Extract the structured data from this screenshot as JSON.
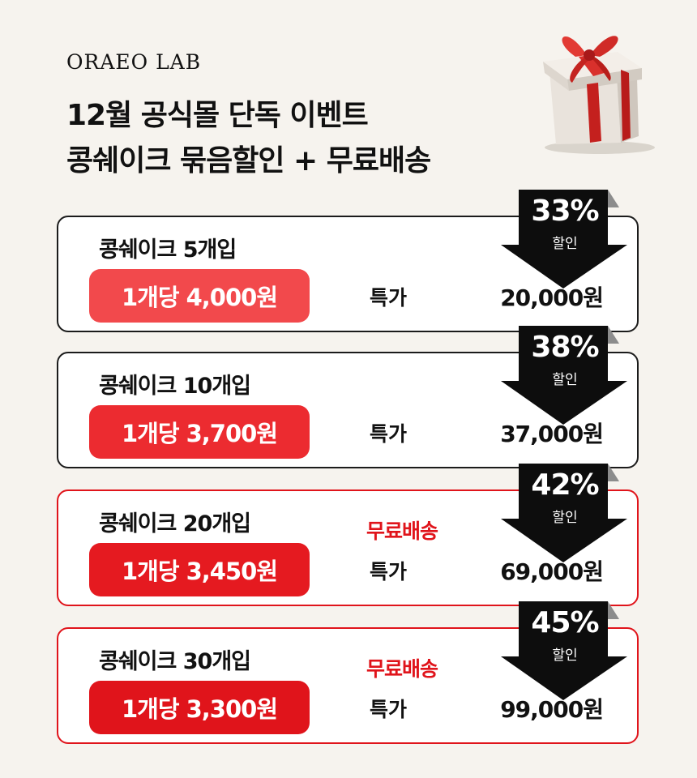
{
  "brand": {
    "logo": "ORAEO LAB"
  },
  "headline": {
    "line1": "12월 공식몰 단독 이벤트",
    "line2": "콩쉐이크 묶음할인 + 무료배송"
  },
  "colors": {
    "accent_red": "#e0141b",
    "coral": "#f2494c",
    "dark": "#1b1b1b"
  },
  "gift_icon": "gift-box-icon",
  "offers": [
    {
      "name": "콩쉐이크 5개입",
      "unit_price": "1개당 4,000원",
      "free_shipping": "",
      "special_label": "특가",
      "total_price": "20,000원",
      "discount": "33%",
      "discount_label": "할인",
      "pill_color": "#f2494c",
      "highlight": false
    },
    {
      "name": "콩쉐이크 10개입",
      "unit_price": "1개당 3,700원",
      "free_shipping": "",
      "special_label": "특가",
      "total_price": "37,000원",
      "discount": "38%",
      "discount_label": "할인",
      "pill_color": "#ec2b30",
      "highlight": false
    },
    {
      "name": "콩쉐이크 20개입",
      "unit_price": "1개당 3,450원",
      "free_shipping": "무료배송",
      "special_label": "특가",
      "total_price": "69,000원",
      "discount": "42%",
      "discount_label": "할인",
      "pill_color": "#e51a20",
      "highlight": true
    },
    {
      "name": "콩쉐이크 30개입",
      "unit_price": "1개당 3,300원",
      "free_shipping": "무료배송",
      "special_label": "특가",
      "total_price": "99,000원",
      "discount": "45%",
      "discount_label": "할인",
      "pill_color": "#e0141b",
      "highlight": true
    }
  ]
}
